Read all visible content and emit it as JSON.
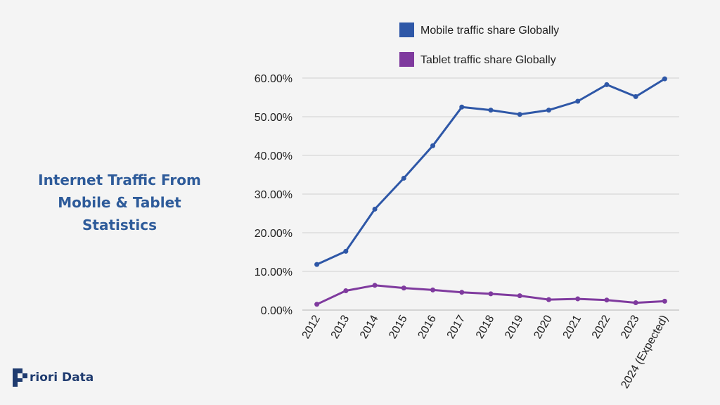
{
  "title": "Internet Traffic From Mobile & Tablet Statistics",
  "brand": {
    "name": "riori Data"
  },
  "colors": {
    "mobile": "#2e57a7",
    "tablet": "#7f3a9e",
    "grid": "#d0d0d0",
    "text": "#222222"
  },
  "chart_data": {
    "type": "line",
    "categories": [
      "2012",
      "2013",
      "2014",
      "2015",
      "2016",
      "2017",
      "2018",
      "2019",
      "2020",
      "2021",
      "2022",
      "2023",
      "2024 (Expected)"
    ],
    "series": [
      {
        "name": "Mobile traffic share Globally",
        "values": [
          11.8,
          15.2,
          26.1,
          34.1,
          42.5,
          52.5,
          51.7,
          50.6,
          51.7,
          54.0,
          58.3,
          55.2,
          59.8
        ]
      },
      {
        "name": "Tablet traffic share Globally",
        "values": [
          1.5,
          5.0,
          6.4,
          5.7,
          5.2,
          4.6,
          4.2,
          3.7,
          2.7,
          2.9,
          2.6,
          1.9,
          2.3
        ]
      }
    ],
    "yticks": [
      "0.00%",
      "10.00%",
      "20.00%",
      "30.00%",
      "40.00%",
      "50.00%",
      "60.00%"
    ],
    "ylim": [
      0,
      60
    ],
    "grid": true,
    "legend_position": "top"
  }
}
